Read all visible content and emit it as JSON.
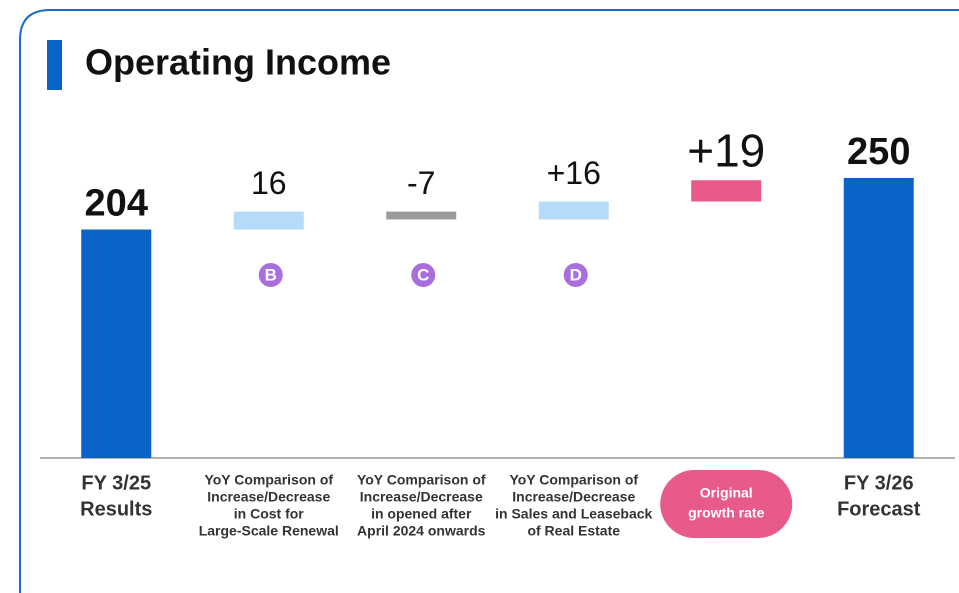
{
  "title": "Operating Income",
  "chart_data": {
    "type": "waterfall",
    "categories": [
      [
        "FY 3/25",
        "Results"
      ],
      [
        "YoY Comparison of",
        "Increase/Decrease",
        "in Cost for",
        "Large-Scale Renewal"
      ],
      [
        "YoY Comparison of",
        "Increase/Decrease",
        "in opened after",
        "April 2024 onwards"
      ],
      [
        "YoY Comparison of",
        "Increase/Decrease",
        "in Sales and Leaseback",
        "of Real Estate"
      ],
      [
        "Original",
        "growth rate"
      ],
      [
        "FY 3/26",
        "Forecast"
      ]
    ],
    "values": [
      204,
      16,
      -7,
      16,
      19,
      250
    ],
    "value_labels": [
      "204",
      "16",
      "-7",
      "+16",
      "+19",
      "250"
    ],
    "totals": [
      true,
      false,
      false,
      false,
      false,
      true
    ],
    "colors": [
      "#0a64c8",
      "#b4dcfa",
      "#9a9a9a",
      "#b4dcfa",
      "#e85a8a",
      "#0a64c8"
    ],
    "markers": [
      null,
      "B",
      "C",
      "D",
      null,
      null
    ],
    "marker_color": "#a86fdc",
    "ylim": [
      0,
      250
    ]
  }
}
